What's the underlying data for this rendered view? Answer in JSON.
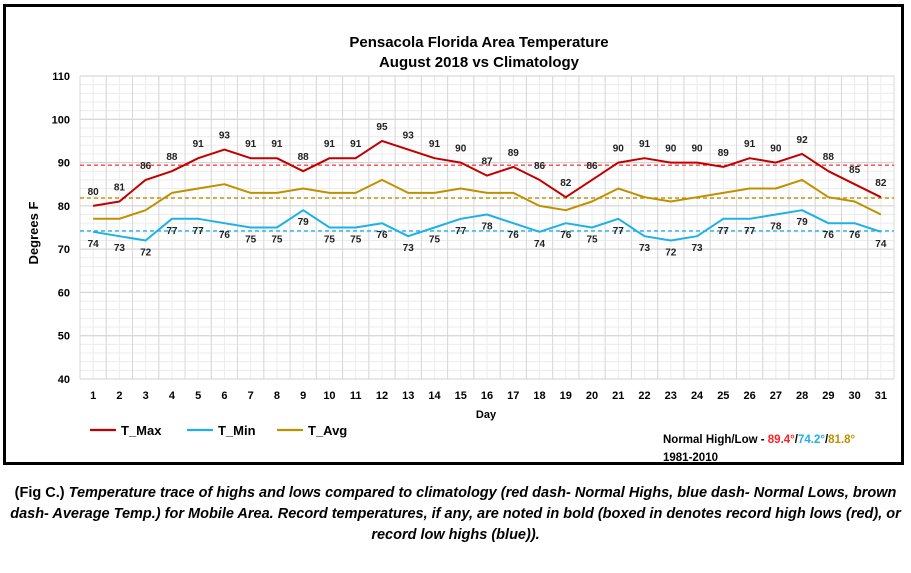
{
  "chart_data": {
    "type": "line",
    "title": "Pensacola Florida Area Temperature",
    "subtitle": "August 2018 vs Climatology",
    "xlabel": "Day",
    "ylabel": "Degrees F",
    "ylim": [
      40,
      110
    ],
    "y_ticks": [
      40,
      50,
      60,
      70,
      80,
      90,
      100,
      110
    ],
    "x": [
      1,
      2,
      3,
      4,
      5,
      6,
      7,
      8,
      9,
      10,
      11,
      12,
      13,
      14,
      15,
      16,
      17,
      18,
      19,
      20,
      21,
      22,
      23,
      24,
      25,
      26,
      27,
      28,
      29,
      30,
      31
    ],
    "grid": true,
    "legend_position": "bottom-left",
    "series": [
      {
        "name": "T_Max",
        "color": "#c00000",
        "values": [
          80,
          81,
          86,
          88,
          91,
          93,
          91,
          91,
          88,
          91,
          91,
          95,
          93,
          91,
          90,
          87,
          89,
          86,
          82,
          86,
          90,
          91,
          90,
          90,
          89,
          91,
          90,
          92,
          88,
          85,
          82
        ]
      },
      {
        "name": "T_Min",
        "color": "#1fb1e6",
        "values": [
          74,
          73,
          72,
          77,
          77,
          76,
          75,
          75,
          79,
          75,
          75,
          76,
          73,
          75,
          77,
          78,
          76,
          74,
          76,
          75,
          77,
          73,
          72,
          73,
          77,
          77,
          78,
          79,
          76,
          76,
          74
        ]
      },
      {
        "name": "T_Avg",
        "color": "#bf9000",
        "values": [
          77,
          77,
          79,
          83,
          84,
          85,
          83,
          83,
          84,
          83,
          83,
          86,
          83,
          83,
          84,
          83,
          83,
          80,
          79,
          81,
          84,
          82,
          81,
          82,
          83,
          84,
          84,
          86,
          82,
          81,
          78
        ]
      }
    ],
    "normals": [
      {
        "value": 89.4,
        "color": "#ff4040"
      },
      {
        "value": 74.2,
        "color": "#1fb1e6"
      },
      {
        "value": 81.8,
        "color": "#bf9000"
      }
    ],
    "normals_note": {
      "prefix": "Normal High/Low - ",
      "high": "89.4°",
      "low": "74.2°",
      "avg": "81.8°",
      "sep": "/",
      "period": "1981-2010"
    }
  },
  "caption": {
    "lead": "(Fig C.) ",
    "text": "Temperature trace of highs and lows compared to climatology (red dash- Normal Highs, blue dash- Normal Lows, brown dash- Average Temp.) for Mobile Area. Record temperatures, if any, are noted in bold (boxed in denotes record high lows (red), or record low highs (blue))."
  }
}
